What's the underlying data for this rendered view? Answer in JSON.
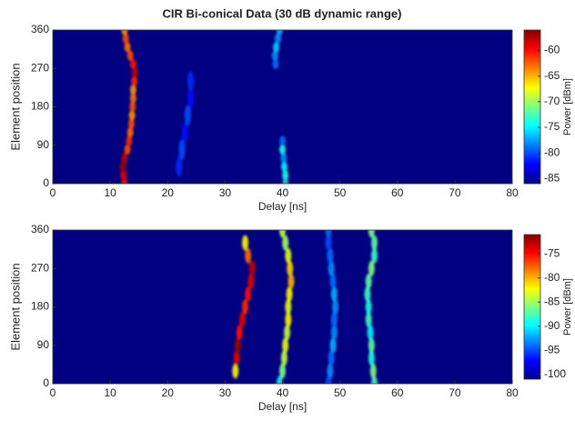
{
  "chart_data": [
    {
      "type": "heatmap",
      "title": "CIR Bi-conical Data  (30 dB dynamic range)",
      "xlabel": "Delay [ns]",
      "ylabel": "Element position",
      "colorbar_label": "Power [dBm]",
      "xlim": [
        0,
        80
      ],
      "xticks": [
        0,
        10,
        20,
        30,
        40,
        50,
        60,
        70,
        80
      ],
      "ylim": [
        0,
        360
      ],
      "yticks": [
        0,
        90,
        180,
        270,
        360
      ],
      "clim": [
        -86,
        -56
      ],
      "cticks": [
        -60,
        -65,
        -70,
        -75,
        -80,
        -85
      ],
      "series": [
        {
          "y": [
            0,
            20,
            40,
            60,
            80,
            100,
            120,
            140,
            160,
            180,
            200,
            220,
            240,
            260,
            280,
            300,
            320,
            340,
            360
          ],
          "x": [
            12.5,
            12.3,
            12.2,
            12.5,
            13,
            13.3,
            13.5,
            13.7,
            13.8,
            13.9,
            14,
            14,
            14.2,
            14.3,
            14,
            13.5,
            13,
            12.7,
            12.5
          ],
          "values": [
            -60,
            -59,
            -57,
            -58,
            -62,
            -61,
            -63,
            -62,
            -64,
            -62,
            -63,
            -64,
            -61,
            -58,
            -60,
            -62,
            -63,
            -62,
            -64
          ]
        },
        {
          "y": [
            0,
            20,
            40,
            60,
            80,
            100
          ],
          "x": [
            40.5,
            40.5,
            40.3,
            40.2,
            40,
            40
          ],
          "values": [
            -76,
            -74,
            -75,
            -78,
            -74,
            -79
          ]
        },
        {
          "y": [
            280,
            300,
            320,
            340,
            360
          ],
          "x": [
            38.8,
            38.7,
            38.9,
            39.2,
            39.5
          ],
          "values": [
            -79,
            -78,
            -76,
            -78,
            -77
          ]
        },
        {
          "y": [
            40,
            80,
            120,
            160,
            200,
            240
          ],
          "x": [
            22,
            22.5,
            23,
            23.5,
            24,
            24
          ],
          "values": [
            -81,
            -80,
            -82,
            -80,
            -82,
            -81
          ]
        }
      ]
    },
    {
      "type": "heatmap",
      "xlabel": "Delay [ns]",
      "ylabel": "Element position",
      "colorbar_label": "Power [dBm]",
      "xlim": [
        0,
        80
      ],
      "xticks": [
        0,
        10,
        20,
        30,
        40,
        50,
        60,
        70,
        80
      ],
      "ylim": [
        0,
        360
      ],
      "yticks": [
        0,
        90,
        180,
        270,
        360
      ],
      "clim": [
        -101,
        -71
      ],
      "cticks": [
        -75,
        -80,
        -85,
        -90,
        -95,
        -100
      ],
      "series": [
        {
          "y": [
            30,
            60,
            90,
            120,
            150,
            180,
            210,
            240,
            270,
            300,
            330
          ],
          "x": [
            31.8,
            32,
            32.2,
            32.5,
            33,
            33.5,
            34,
            34.5,
            34.7,
            34,
            33.5
          ],
          "values": [
            -82,
            -74,
            -72,
            -75,
            -74,
            -76,
            -75,
            -74,
            -73,
            -78,
            -82
          ]
        },
        {
          "y": [
            0,
            30,
            60,
            90,
            120,
            150,
            180,
            210,
            240,
            270,
            300,
            330,
            360
          ],
          "x": [
            39.5,
            40,
            40.3,
            40.5,
            40.8,
            41,
            41,
            41.2,
            41.5,
            41.3,
            41,
            40.5,
            40
          ],
          "values": [
            -90,
            -86,
            -84,
            -83,
            -84,
            -82,
            -83,
            -82,
            -80,
            -81,
            -83,
            -85,
            -84
          ]
        },
        {
          "y": [
            0,
            30,
            60,
            90,
            120,
            150,
            180,
            210,
            240,
            270,
            300,
            330,
            360
          ],
          "x": [
            48,
            48.3,
            48.5,
            48.8,
            49,
            49,
            49.2,
            49,
            48.8,
            48.5,
            48.3,
            48,
            48
          ],
          "values": [
            -95,
            -93,
            -94,
            -92,
            -93,
            -94,
            -93,
            -92,
            -94,
            -93,
            -94,
            -95,
            -94
          ]
        },
        {
          "y": [
            0,
            30,
            60,
            90,
            120,
            150,
            180,
            210,
            240,
            270,
            300,
            330,
            360
          ],
          "x": [
            56,
            55.8,
            55.5,
            55.5,
            55.3,
            55,
            55,
            54.8,
            55,
            55.5,
            56,
            56,
            55.5
          ],
          "values": [
            -88,
            -86,
            -89,
            -87,
            -90,
            -88,
            -89,
            -88,
            -87,
            -86,
            -88,
            -87,
            -86
          ]
        }
      ]
    }
  ]
}
